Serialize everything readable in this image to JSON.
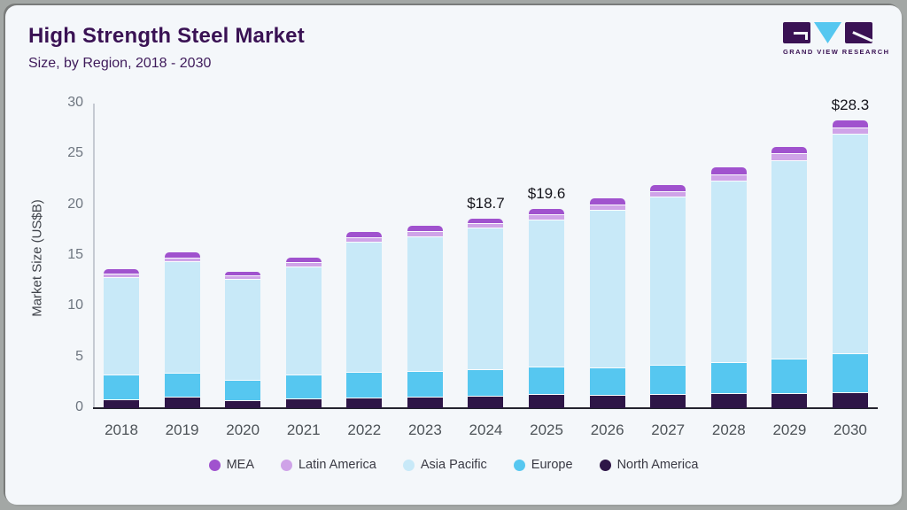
{
  "header": {
    "title": "High Strength Steel Market",
    "subtitle": "Size, by Region, 2018 - 2030"
  },
  "logo": {
    "text": "GRAND VIEW RESEARCH",
    "purple": "#3a1254",
    "cyan": "#56c7f0"
  },
  "chart_data": {
    "type": "bar",
    "variant": "stacked",
    "title": "High Strength Steel Market",
    "subtitle": "Size, by Region, 2018 - 2030",
    "ylabel": "Market Size (US$B)",
    "xlabel": "",
    "ylim": [
      0,
      30
    ],
    "yticks": [
      0,
      5,
      10,
      15,
      20,
      25,
      30
    ],
    "grid": false,
    "legend_position": "bottom",
    "categories": [
      "2018",
      "2019",
      "2020",
      "2021",
      "2022",
      "2023",
      "2024",
      "2025",
      "2026",
      "2027",
      "2028",
      "2029",
      "2030"
    ],
    "series": [
      {
        "name": "North America",
        "color": "#2e1647",
        "values": [
          0.9,
          1.1,
          0.75,
          0.95,
          1.0,
          1.1,
          1.25,
          1.4,
          1.3,
          1.4,
          1.5,
          1.45,
          1.55
        ]
      },
      {
        "name": "Europe",
        "color": "#56c7f0",
        "values": [
          2.45,
          2.35,
          2.05,
          2.4,
          2.55,
          2.55,
          2.6,
          2.7,
          2.75,
          2.85,
          3.05,
          3.4,
          3.85
        ]
      },
      {
        "name": "Asia Pacific",
        "color": "#c8e9f8",
        "values": [
          9.55,
          11.0,
          9.9,
          10.6,
          12.8,
          13.3,
          13.9,
          14.5,
          15.5,
          16.55,
          17.9,
          19.6,
          21.6
        ]
      },
      {
        "name": "Latin America",
        "color": "#cfa3e8",
        "values": [
          0.35,
          0.4,
          0.35,
          0.45,
          0.5,
          0.5,
          0.48,
          0.5,
          0.5,
          0.55,
          0.55,
          0.65,
          0.68
        ]
      },
      {
        "name": "MEA",
        "color": "#a052ce",
        "values": [
          0.45,
          0.5,
          0.4,
          0.45,
          0.5,
          0.55,
          0.47,
          0.5,
          0.6,
          0.65,
          0.75,
          0.6,
          0.62
        ]
      }
    ],
    "totals_shown": [
      {
        "category": "2024",
        "text": "$18.7"
      },
      {
        "category": "2025",
        "text": "$19.6"
      },
      {
        "category": "2030",
        "text": "$28.3"
      }
    ],
    "legend_items": [
      {
        "label": "MEA",
        "color": "#a052ce"
      },
      {
        "label": "Latin America",
        "color": "#cfa3e8"
      },
      {
        "label": "Asia Pacific",
        "color": "#c8e9f8"
      },
      {
        "label": "Europe",
        "color": "#56c7f0"
      },
      {
        "label": "North America",
        "color": "#2e1647"
      }
    ]
  }
}
